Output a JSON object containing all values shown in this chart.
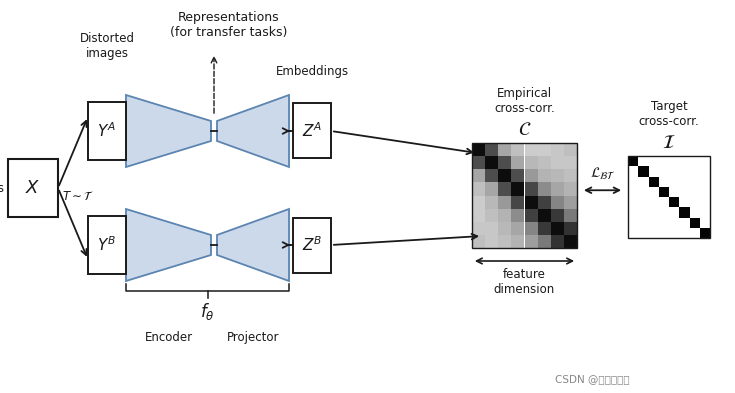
{
  "bg_color": "#ffffff",
  "text_color": "#1a1a1a",
  "box_edge": "#1a1a1a",
  "blue_fill": "#ccd9ea",
  "blue_edge": "#5b84b1",
  "title_text": "Representations\n(for transfer tasks)",
  "watermark": "CSDN @羽林小王子",
  "labels": {
    "images": "Images",
    "X": "$X$",
    "T_tau": "$T \\sim \\mathcal{T}$",
    "YA": "$Y^A$",
    "YB": "$Y^B$",
    "ZA": "$Z^A$",
    "ZB": "$Z^B$",
    "f_theta": "$f_\\theta$",
    "encoder": "Encoder",
    "projector": "Projector",
    "distorted": "Distorted\nimages",
    "embeddings": "Embeddings",
    "empirical": "Empirical\ncross-corr.",
    "C_label": "$\\mathcal{C}$",
    "target_cc": "Target\ncross-corr.",
    "I_label": "$\\mathcal{I}$",
    "loss": "$\\mathcal{L}_{\\mathcal{B}\\mathcal{T}}$",
    "feature_dim": "feature\ndimension"
  },
  "figsize": [
    7.35,
    3.93
  ],
  "dpi": 100
}
